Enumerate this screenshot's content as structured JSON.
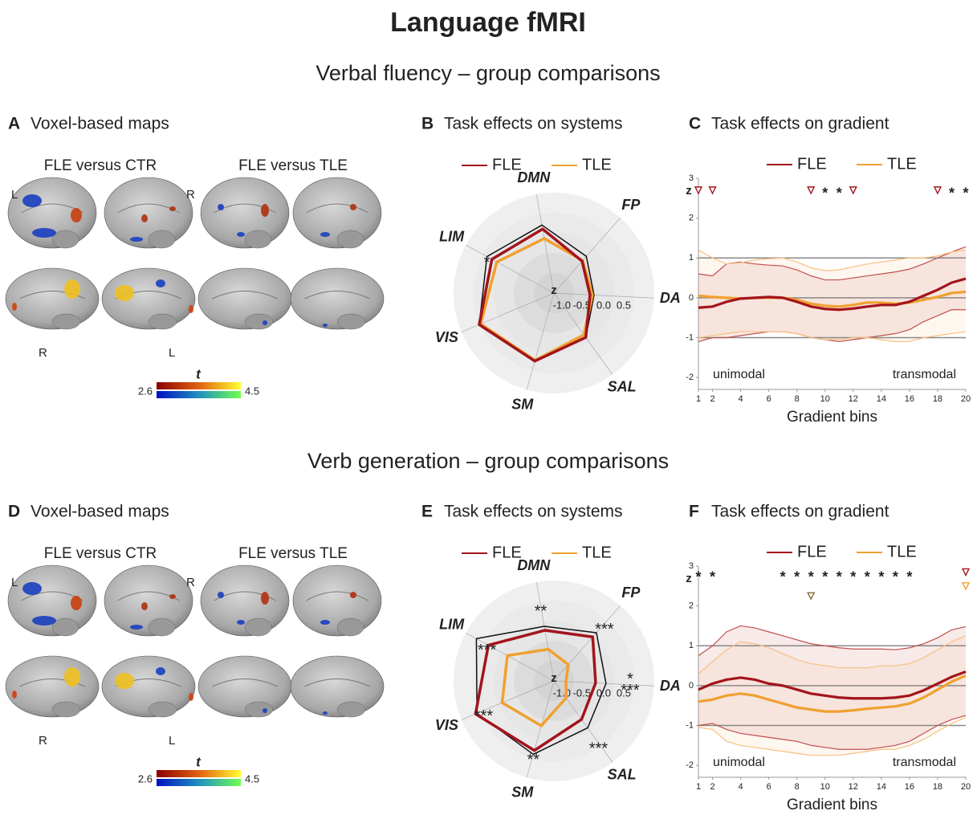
{
  "title": "Language fMRI",
  "sections": [
    "Verbal fluency – group comparisons",
    "Verb generation – group comparisons"
  ],
  "maps": [
    {
      "label": "A",
      "title": "Voxel-based maps",
      "columns": [
        "FLE versus CTR",
        "FLE versus TLE"
      ],
      "hemispheres": [
        "L",
        "R",
        "R",
        "L"
      ],
      "colorbar": {
        "label": "t",
        "min": 2.6,
        "max": 4.5
      }
    },
    {
      "label": "D",
      "title": "Voxel-based maps",
      "columns": [
        "FLE versus CTR",
        "FLE versus TLE"
      ],
      "hemispheres": [
        "L",
        "R",
        "R",
        "L"
      ],
      "colorbar": {
        "label": "t",
        "min": 2.6,
        "max": 4.5
      }
    }
  ],
  "chart_data": [
    {
      "type": "radar",
      "label": "B",
      "title": "Task effects on systems",
      "categories": [
        "DMN",
        "FP",
        "DA",
        "SAL",
        "SM",
        "VIS",
        "LIM"
      ],
      "category_colors": [
        "#c2185b",
        "#e08a00",
        "#2e8b2e",
        "#d070b0",
        "#1f8fbf",
        "#7b1f8a",
        "#b5c07a"
      ],
      "rlim": [
        -1.5,
        1.0
      ],
      "rticks": [
        {
          "value": -1,
          "label": "-1.0"
        },
        {
          "value": -0.5,
          "label": "-0.5"
        },
        {
          "value": 0,
          "label": "0.0"
        },
        0.5
      ],
      "raxis_label": "z",
      "series": [
        {
          "color": "#111111",
          "values": [
            0.22,
            -0.28,
            -0.5,
            -0.14,
            0.26,
            0.52,
            0.4
          ]
        },
        {
          "name": "TLE",
          "color": "#f0a030",
          "values": [
            -0.12,
            -0.42,
            -0.54,
            -0.22,
            0.24,
            0.48,
            0.12
          ]
        },
        {
          "name": "FLE",
          "color": "#a3141c",
          "values": [
            0.12,
            -0.44,
            -0.6,
            -0.14,
            0.26,
            0.52,
            0.26
          ]
        }
      ],
      "annotations": [
        {
          "text": "*",
          "at": "LIM",
          "color": "#f0a030"
        }
      ]
    },
    {
      "type": "line",
      "label": "C",
      "title": "Task effects on gradient",
      "y_label": "z",
      "x_label": "Gradient bins",
      "annotations_left": "unimodal",
      "annotations_right": "transmodal",
      "x": [
        1,
        2,
        3,
        4,
        5,
        6,
        7,
        8,
        9,
        10,
        11,
        12,
        13,
        14,
        15,
        16,
        17,
        18,
        19,
        20
      ],
      "xlim": [
        1,
        20
      ],
      "xticks": [
        1,
        2,
        4,
        6,
        8,
        10,
        12,
        14,
        16,
        18,
        20
      ],
      "ylim": [
        -2.3,
        3
      ],
      "yticks": [
        -2,
        -1,
        0,
        1,
        2,
        3
      ],
      "hlines": [
        -1,
        0,
        1
      ],
      "series": [
        {
          "name": "FLE",
          "color": "#a3141c",
          "band_color": "#c0504d",
          "values": [
            -0.25,
            -0.22,
            -0.1,
            -0.02,
            0.0,
            0.02,
            0.0,
            -0.1,
            -0.22,
            -0.28,
            -0.3,
            -0.27,
            -0.22,
            -0.18,
            -0.18,
            -0.1,
            0.05,
            0.2,
            0.38,
            0.48
          ],
          "upper": [
            0.6,
            0.55,
            0.85,
            0.9,
            0.85,
            0.82,
            0.8,
            0.7,
            0.55,
            0.45,
            0.45,
            0.5,
            0.55,
            0.6,
            0.65,
            0.72,
            0.85,
            1.0,
            1.15,
            1.28
          ],
          "lower": [
            -1.1,
            -1.0,
            -1.0,
            -0.95,
            -0.9,
            -0.85,
            -0.85,
            -0.9,
            -1.0,
            -1.05,
            -1.1,
            -1.05,
            -1.0,
            -0.95,
            -0.9,
            -0.8,
            -0.6,
            -0.45,
            -0.3,
            -0.3
          ]
        },
        {
          "name": "TLE",
          "color": "#f0a030",
          "band_color": "#f7c080",
          "values": [
            0.05,
            0.02,
            0.0,
            -0.02,
            0.0,
            0.0,
            0.0,
            -0.05,
            -0.15,
            -0.2,
            -0.22,
            -0.18,
            -0.12,
            -0.12,
            -0.15,
            -0.12,
            -0.05,
            0.02,
            0.12,
            0.15
          ],
          "upper": [
            1.2,
            1.0,
            0.85,
            0.88,
            0.95,
            0.98,
            1.0,
            0.9,
            0.75,
            0.68,
            0.7,
            0.78,
            0.85,
            0.9,
            0.95,
            1.0,
            1.0,
            1.05,
            1.15,
            1.2
          ],
          "lower": [
            -1.0,
            -0.95,
            -0.9,
            -0.85,
            -0.85,
            -0.85,
            -0.85,
            -0.9,
            -1.0,
            -1.05,
            -1.05,
            -1.0,
            -1.0,
            -1.05,
            -1.1,
            -1.1,
            -1.0,
            -0.95,
            -0.9,
            -0.85
          ]
        }
      ],
      "markers": [
        {
          "shape": "triangle",
          "color": "#a3141c",
          "y": 2.7,
          "x": [
            1,
            2,
            9,
            12,
            18
          ]
        },
        {
          "symbol": "*",
          "color": "#a3141c",
          "y": 2.7,
          "x": [
            10,
            11,
            19,
            20
          ]
        }
      ]
    },
    {
      "type": "radar",
      "label": "E",
      "title": "Task effects on systems",
      "categories": [
        "DMN",
        "FP",
        "DA",
        "SAL",
        "SM",
        "VIS",
        "LIM"
      ],
      "category_colors": [
        "#c2185b",
        "#e08a00",
        "#2e8b2e",
        "#d070b0",
        "#1f8fbf",
        "#7b1f8a",
        "#b5c07a"
      ],
      "rlim": [
        -1.5,
        1.0
      ],
      "rticks": [
        {
          "value": -1,
          "label": "-1.0"
        },
        {
          "value": -0.5,
          "label": "-0.5"
        },
        {
          "value": 0,
          "label": "0.0"
        },
        0.5
      ],
      "raxis_label": "z",
      "series": [
        {
          "color": "#111111",
          "values": [
            -0.12,
            0.1,
            -0.2,
            -0.06,
            0.4,
            0.58,
            0.7
          ]
        },
        {
          "name": "TLE",
          "color": "#f0a030",
          "values": [
            -0.7,
            -0.96,
            -1.2,
            -0.98,
            -0.34,
            -0.1,
            -0.18
          ]
        },
        {
          "name": "FLE",
          "color": "#a3141c",
          "values": [
            -0.22,
            -0.04,
            -0.46,
            -0.32,
            0.3,
            0.62,
            0.36
          ]
        }
      ],
      "annotations": [
        {
          "text": "**",
          "at": "DMN",
          "color": "#f0a030"
        },
        {
          "text": "***",
          "at": "FP",
          "color": "#f0a030"
        },
        {
          "text": "*",
          "at": "DA",
          "color": "#8a6a3a"
        },
        {
          "text": "***",
          "at": "DA",
          "color": "#f0a030"
        },
        {
          "text": "***",
          "at": "SAL",
          "color": "#f0a030"
        },
        {
          "text": "**",
          "at": "SM",
          "color": "#f0a030"
        },
        {
          "text": "***",
          "at": "VIS",
          "color": "#f0a030"
        },
        {
          "text": "***",
          "at": "LIM",
          "color": "#f0a030"
        }
      ]
    },
    {
      "type": "line",
      "label": "F",
      "title": "Task effects on gradient",
      "y_label": "z",
      "x_label": "Gradient bins",
      "annotations_left": "unimodal",
      "annotations_right": "transmodal",
      "x": [
        1,
        2,
        3,
        4,
        5,
        6,
        7,
        8,
        9,
        10,
        11,
        12,
        13,
        14,
        15,
        16,
        17,
        18,
        19,
        20
      ],
      "xlim": [
        1,
        20
      ],
      "xticks": [
        1,
        2,
        4,
        6,
        8,
        10,
        12,
        14,
        16,
        18,
        20
      ],
      "ylim": [
        -2.3,
        3
      ],
      "yticks": [
        -2,
        -1,
        0,
        1,
        2,
        3
      ],
      "hlines": [
        -1,
        0,
        1
      ],
      "series": [
        {
          "name": "FLE",
          "color": "#a3141c",
          "band_color": "#c0504d",
          "values": [
            -0.1,
            0.05,
            0.15,
            0.2,
            0.15,
            0.05,
            0.0,
            -0.1,
            -0.2,
            -0.25,
            -0.3,
            -0.32,
            -0.32,
            -0.32,
            -0.3,
            -0.25,
            -0.12,
            0.05,
            0.22,
            0.35
          ],
          "upper": [
            0.75,
            1.0,
            1.35,
            1.5,
            1.45,
            1.35,
            1.25,
            1.15,
            1.05,
            1.0,
            0.95,
            0.92,
            0.92,
            0.92,
            0.9,
            0.95,
            1.05,
            1.2,
            1.4,
            1.48
          ],
          "lower": [
            -1.0,
            -0.95,
            -1.1,
            -1.2,
            -1.25,
            -1.3,
            -1.35,
            -1.4,
            -1.5,
            -1.55,
            -1.6,
            -1.6,
            -1.6,
            -1.55,
            -1.5,
            -1.4,
            -1.2,
            -1.0,
            -0.85,
            -0.75
          ]
        },
        {
          "name": "TLE",
          "color": "#f0a030",
          "band_color": "#f7c080",
          "values": [
            -0.4,
            -0.35,
            -0.25,
            -0.2,
            -0.25,
            -0.35,
            -0.45,
            -0.55,
            -0.6,
            -0.65,
            -0.65,
            -0.62,
            -0.58,
            -0.55,
            -0.52,
            -0.45,
            -0.3,
            -0.1,
            0.1,
            0.25
          ],
          "upper": [
            0.3,
            0.6,
            0.9,
            1.1,
            1.05,
            0.95,
            0.8,
            0.65,
            0.55,
            0.5,
            0.45,
            0.45,
            0.45,
            0.5,
            0.5,
            0.55,
            0.7,
            0.9,
            1.1,
            1.25
          ],
          "lower": [
            -1.05,
            -1.1,
            -1.4,
            -1.5,
            -1.55,
            -1.6,
            -1.65,
            -1.7,
            -1.75,
            -1.75,
            -1.75,
            -1.7,
            -1.65,
            -1.6,
            -1.6,
            -1.5,
            -1.35,
            -1.15,
            -0.95,
            -0.8
          ]
        }
      ],
      "markers": [
        {
          "symbol": "*",
          "color": "#f0a030",
          "y": 2.8,
          "x": [
            1,
            2,
            7,
            8,
            9,
            10,
            11,
            12,
            13,
            14,
            15,
            16
          ]
        },
        {
          "shape": "triangle",
          "color": "#8a6a3a",
          "y": 2.25,
          "x": [
            9
          ]
        },
        {
          "shape": "triangle",
          "color": "#a3141c",
          "y": 2.85,
          "x": [
            20
          ]
        },
        {
          "shape": "triangle",
          "color": "#f0a030",
          "y": 2.5,
          "x": [
            20
          ]
        }
      ]
    }
  ]
}
